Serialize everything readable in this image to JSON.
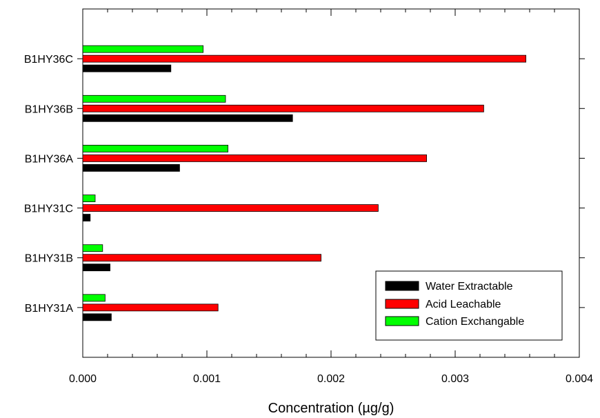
{
  "chart_data": {
    "type": "bar",
    "orientation": "horizontal",
    "title": "",
    "xlabel": "Concentration (µg/g)",
    "ylabel": "",
    "xlim": [
      0,
      0.004
    ],
    "x_ticks": [
      "0.000",
      "0.001",
      "0.002",
      "0.003",
      "0.004"
    ],
    "x_tick_values": [
      0,
      0.001,
      0.002,
      0.003,
      0.004
    ],
    "categories": [
      "B1HY31A",
      "B1HY31B",
      "B1HY31C",
      "B1HY36A",
      "B1HY36B",
      "B1HY36C"
    ],
    "series": [
      {
        "name": "Water Extractable",
        "color": "#000000",
        "values": [
          0.00023,
          0.00022,
          6e-05,
          0.00078,
          0.00169,
          0.00071
        ]
      },
      {
        "name": "Acid Leachable",
        "color": "#ff0000",
        "values": [
          0.00109,
          0.00192,
          0.00238,
          0.00277,
          0.00323,
          0.00357
        ]
      },
      {
        "name": "Cation Exchangable",
        "color": "#00ff00",
        "values": [
          0.00018,
          0.00016,
          0.0001,
          0.00117,
          0.00115,
          0.00097
        ]
      }
    ],
    "grid": false,
    "legend_position": "bottom-right"
  }
}
